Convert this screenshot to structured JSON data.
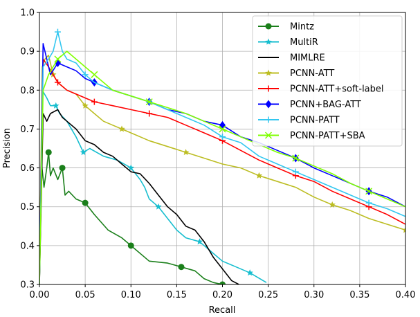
{
  "chart_data": {
    "type": "line",
    "xlabel": "Recall",
    "ylabel": "Precision",
    "xlim": [
      0.0,
      0.4
    ],
    "ylim": [
      0.3,
      1.0
    ],
    "x_ticks": [
      "0.00",
      "0.05",
      "0.10",
      "0.15",
      "0.20",
      "0.25",
      "0.30",
      "0.35",
      "0.40"
    ],
    "y_ticks": [
      "0.3",
      "0.4",
      "0.5",
      "0.6",
      "0.7",
      "0.8",
      "0.9",
      "1.0"
    ],
    "grid": true,
    "legend_position": "top-right",
    "series": [
      {
        "name": "Mintz",
        "color": "#1a7f1a",
        "marker": "circle",
        "points": [
          [
            0.0,
            0.33
          ],
          [
            0.002,
            0.62
          ],
          [
            0.005,
            0.55
          ],
          [
            0.008,
            0.6
          ],
          [
            0.01,
            0.64
          ],
          [
            0.012,
            0.58
          ],
          [
            0.015,
            0.6
          ],
          [
            0.02,
            0.57
          ],
          [
            0.025,
            0.6
          ],
          [
            0.028,
            0.53
          ],
          [
            0.032,
            0.54
          ],
          [
            0.04,
            0.52
          ],
          [
            0.05,
            0.51
          ],
          [
            0.06,
            0.48
          ],
          [
            0.075,
            0.44
          ],
          [
            0.09,
            0.42
          ],
          [
            0.1,
            0.4
          ],
          [
            0.115,
            0.37
          ],
          [
            0.12,
            0.36
          ],
          [
            0.14,
            0.355
          ],
          [
            0.155,
            0.345
          ],
          [
            0.17,
            0.335
          ],
          [
            0.18,
            0.315
          ],
          [
            0.19,
            0.305
          ],
          [
            0.2,
            0.3
          ]
        ]
      },
      {
        "name": "MultiR",
        "color": "#17becf",
        "marker": "star",
        "points": [
          [
            0.0,
            0.3
          ],
          [
            0.003,
            0.8
          ],
          [
            0.008,
            0.78
          ],
          [
            0.012,
            0.76
          ],
          [
            0.018,
            0.76
          ],
          [
            0.022,
            0.74
          ],
          [
            0.03,
            0.72
          ],
          [
            0.04,
            0.68
          ],
          [
            0.048,
            0.64
          ],
          [
            0.055,
            0.65
          ],
          [
            0.07,
            0.63
          ],
          [
            0.085,
            0.62
          ],
          [
            0.1,
            0.6
          ],
          [
            0.11,
            0.57
          ],
          [
            0.115,
            0.55
          ],
          [
            0.12,
            0.52
          ],
          [
            0.13,
            0.5
          ],
          [
            0.14,
            0.47
          ],
          [
            0.15,
            0.44
          ],
          [
            0.16,
            0.42
          ],
          [
            0.175,
            0.41
          ],
          [
            0.19,
            0.38
          ],
          [
            0.2,
            0.36
          ],
          [
            0.215,
            0.345
          ],
          [
            0.23,
            0.33
          ],
          [
            0.248,
            0.305
          ]
        ]
      },
      {
        "name": "MIMLRE",
        "color": "#000000",
        "marker": "none",
        "points": [
          [
            0.0,
            0.3
          ],
          [
            0.004,
            0.74
          ],
          [
            0.008,
            0.72
          ],
          [
            0.012,
            0.74
          ],
          [
            0.02,
            0.75
          ],
          [
            0.025,
            0.73
          ],
          [
            0.03,
            0.72
          ],
          [
            0.04,
            0.7
          ],
          [
            0.05,
            0.67
          ],
          [
            0.06,
            0.66
          ],
          [
            0.07,
            0.64
          ],
          [
            0.08,
            0.63
          ],
          [
            0.09,
            0.61
          ],
          [
            0.1,
            0.59
          ],
          [
            0.11,
            0.585
          ],
          [
            0.12,
            0.56
          ],
          [
            0.13,
            0.53
          ],
          [
            0.14,
            0.5
          ],
          [
            0.15,
            0.48
          ],
          [
            0.16,
            0.45
          ],
          [
            0.17,
            0.44
          ],
          [
            0.18,
            0.41
          ],
          [
            0.19,
            0.37
          ],
          [
            0.2,
            0.34
          ],
          [
            0.21,
            0.31
          ],
          [
            0.218,
            0.3
          ]
        ]
      },
      {
        "name": "PCNN-ATT",
        "color": "#bcbd22",
        "marker": "star",
        "points": [
          [
            0.0,
            0.3
          ],
          [
            0.003,
            0.86
          ],
          [
            0.006,
            0.88
          ],
          [
            0.01,
            0.89
          ],
          [
            0.015,
            0.84
          ],
          [
            0.02,
            0.82
          ],
          [
            0.03,
            0.8
          ],
          [
            0.04,
            0.79
          ],
          [
            0.05,
            0.76
          ],
          [
            0.06,
            0.74
          ],
          [
            0.07,
            0.72
          ],
          [
            0.08,
            0.71
          ],
          [
            0.09,
            0.7
          ],
          [
            0.1,
            0.69
          ],
          [
            0.12,
            0.67
          ],
          [
            0.14,
            0.655
          ],
          [
            0.16,
            0.64
          ],
          [
            0.18,
            0.625
          ],
          [
            0.2,
            0.61
          ],
          [
            0.22,
            0.6
          ],
          [
            0.24,
            0.58
          ],
          [
            0.26,
            0.565
          ],
          [
            0.28,
            0.55
          ],
          [
            0.3,
            0.525
          ],
          [
            0.32,
            0.505
          ],
          [
            0.34,
            0.49
          ],
          [
            0.36,
            0.47
          ],
          [
            0.38,
            0.455
          ],
          [
            0.4,
            0.44
          ]
        ]
      },
      {
        "name": "PCNN-ATT+soft-label",
        "color": "#ff0000",
        "marker": "plus",
        "points": [
          [
            0.0,
            0.3
          ],
          [
            0.004,
            0.88
          ],
          [
            0.01,
            0.86
          ],
          [
            0.015,
            0.84
          ],
          [
            0.02,
            0.82
          ],
          [
            0.03,
            0.8
          ],
          [
            0.04,
            0.79
          ],
          [
            0.05,
            0.78
          ],
          [
            0.06,
            0.77
          ],
          [
            0.07,
            0.765
          ],
          [
            0.08,
            0.76
          ],
          [
            0.1,
            0.75
          ],
          [
            0.12,
            0.74
          ],
          [
            0.14,
            0.73
          ],
          [
            0.16,
            0.71
          ],
          [
            0.18,
            0.69
          ],
          [
            0.2,
            0.67
          ],
          [
            0.22,
            0.645
          ],
          [
            0.24,
            0.62
          ],
          [
            0.26,
            0.6
          ],
          [
            0.28,
            0.58
          ],
          [
            0.3,
            0.565
          ],
          [
            0.32,
            0.54
          ],
          [
            0.34,
            0.52
          ],
          [
            0.36,
            0.5
          ],
          [
            0.38,
            0.48
          ],
          [
            0.4,
            0.455
          ]
        ]
      },
      {
        "name": "PCNN+BAG-ATT",
        "color": "#0000ff",
        "marker": "diamond",
        "points": [
          [
            0.0,
            0.3
          ],
          [
            0.004,
            0.92
          ],
          [
            0.008,
            0.88
          ],
          [
            0.012,
            0.84
          ],
          [
            0.02,
            0.87
          ],
          [
            0.03,
            0.86
          ],
          [
            0.04,
            0.85
          ],
          [
            0.05,
            0.83
          ],
          [
            0.06,
            0.82
          ],
          [
            0.07,
            0.81
          ],
          [
            0.08,
            0.8
          ],
          [
            0.1,
            0.785
          ],
          [
            0.12,
            0.77
          ],
          [
            0.14,
            0.75
          ],
          [
            0.16,
            0.74
          ],
          [
            0.18,
            0.72
          ],
          [
            0.2,
            0.71
          ],
          [
            0.22,
            0.68
          ],
          [
            0.24,
            0.665
          ],
          [
            0.26,
            0.645
          ],
          [
            0.28,
            0.625
          ],
          [
            0.3,
            0.6
          ],
          [
            0.32,
            0.58
          ],
          [
            0.34,
            0.56
          ],
          [
            0.36,
            0.54
          ],
          [
            0.38,
            0.525
          ],
          [
            0.4,
            0.5
          ]
        ]
      },
      {
        "name": "PCNN-PATT",
        "color": "#33c7f0",
        "marker": "plus",
        "points": [
          [
            0.0,
            0.3
          ],
          [
            0.004,
            0.86
          ],
          [
            0.01,
            0.88
          ],
          [
            0.015,
            0.9
          ],
          [
            0.02,
            0.95
          ],
          [
            0.025,
            0.9
          ],
          [
            0.03,
            0.88
          ],
          [
            0.04,
            0.87
          ],
          [
            0.05,
            0.84
          ],
          [
            0.06,
            0.82
          ],
          [
            0.08,
            0.8
          ],
          [
            0.1,
            0.785
          ],
          [
            0.12,
            0.77
          ],
          [
            0.14,
            0.75
          ],
          [
            0.16,
            0.73
          ],
          [
            0.18,
            0.71
          ],
          [
            0.2,
            0.68
          ],
          [
            0.22,
            0.665
          ],
          [
            0.24,
            0.63
          ],
          [
            0.26,
            0.61
          ],
          [
            0.28,
            0.59
          ],
          [
            0.3,
            0.57
          ],
          [
            0.32,
            0.55
          ],
          [
            0.34,
            0.53
          ],
          [
            0.36,
            0.51
          ],
          [
            0.38,
            0.495
          ],
          [
            0.4,
            0.475
          ]
        ]
      },
      {
        "name": "PCNN-PATT+SBA",
        "color": "#7fff00",
        "marker": "x",
        "points": [
          [
            0.0,
            0.3
          ],
          [
            0.004,
            0.8
          ],
          [
            0.01,
            0.84
          ],
          [
            0.015,
            0.86
          ],
          [
            0.02,
            0.88
          ],
          [
            0.03,
            0.9
          ],
          [
            0.04,
            0.88
          ],
          [
            0.05,
            0.86
          ],
          [
            0.06,
            0.84
          ],
          [
            0.07,
            0.82
          ],
          [
            0.08,
            0.8
          ],
          [
            0.1,
            0.785
          ],
          [
            0.12,
            0.77
          ],
          [
            0.14,
            0.755
          ],
          [
            0.16,
            0.74
          ],
          [
            0.18,
            0.72
          ],
          [
            0.2,
            0.7
          ],
          [
            0.22,
            0.68
          ],
          [
            0.24,
            0.66
          ],
          [
            0.26,
            0.64
          ],
          [
            0.28,
            0.625
          ],
          [
            0.3,
            0.605
          ],
          [
            0.32,
            0.585
          ],
          [
            0.34,
            0.56
          ],
          [
            0.36,
            0.54
          ],
          [
            0.38,
            0.52
          ],
          [
            0.4,
            0.5
          ]
        ]
      }
    ]
  }
}
